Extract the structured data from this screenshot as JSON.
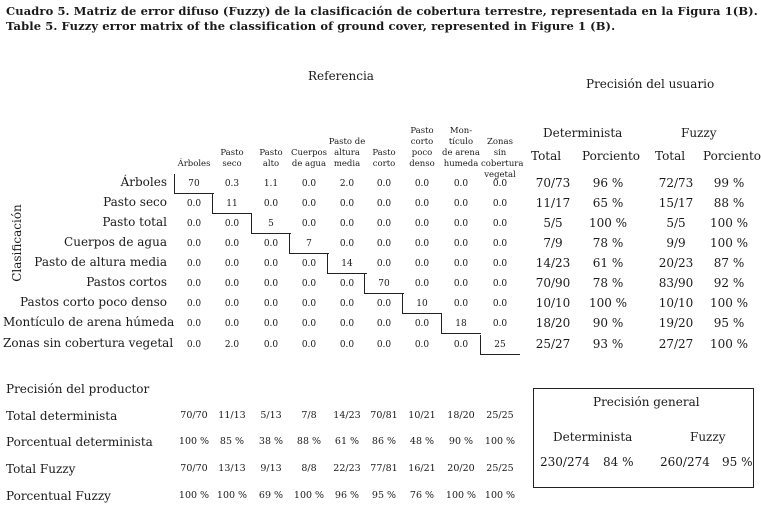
{
  "caption": {
    "line1": "Cuadro 5. Matriz de error difuso (Fuzzy) de la clasificación de cobertura terrestre, representada en la Figura 1(B).",
    "line2": "Table 5. Fuzzy error matrix of the classification of ground cover, represented in Figure 1 (B)."
  },
  "headers": {
    "referencia": "Referencia",
    "clasificacion": "Clasificación",
    "precision_usuario": "Precisión del usuario",
    "determinista": "Determinista",
    "fuzzy": "Fuzzy",
    "total": "Total",
    "porciento": "Porciento"
  },
  "columns": [
    [
      "Árboles"
    ],
    [
      "Pasto",
      "seco"
    ],
    [
      "Pasto",
      "alto"
    ],
    [
      "Cuerpos",
      "de agua"
    ],
    [
      "Pasto de",
      "altura",
      "media"
    ],
    [
      "Pasto",
      "corto"
    ],
    [
      "Pasto",
      "corto",
      "poco",
      "denso"
    ],
    [
      "Mon-",
      "tículo",
      "de arena",
      "humeda"
    ],
    [
      "Zonas sin",
      "cobertura",
      "vegetal"
    ]
  ],
  "rows": [
    {
      "label": "Árboles",
      "values": [
        "70",
        "0.3",
        "1.1",
        "0.0",
        "2.0",
        "0.0",
        "0.0",
        "0.0",
        "0.0"
      ],
      "det_total": "70/73",
      "det_pct": "96 %",
      "fz_total": "72/73",
      "fz_pct": "99 %"
    },
    {
      "label": "Pasto seco",
      "values": [
        "0.0",
        "11",
        "0.0",
        "0.0",
        "0.0",
        "0.0",
        "0.0",
        "0.0",
        "0.0"
      ],
      "det_total": "11/17",
      "det_pct": "65 %",
      "fz_total": "15/17",
      "fz_pct": "88 %"
    },
    {
      "label": "Pasto total",
      "values": [
        "0.0",
        "0.0",
        "5",
        "0.0",
        "0.0",
        "0.0",
        "0.0",
        "0.0",
        "0.0"
      ],
      "det_total": "5/5",
      "det_pct": "100 %",
      "fz_total": "5/5",
      "fz_pct": "100 %"
    },
    {
      "label": "Cuerpos de agua",
      "values": [
        "0.0",
        "0.0",
        "0.0",
        "7",
        "0.0",
        "0.0",
        "0.0",
        "0.0",
        "0.0"
      ],
      "det_total": "7/9",
      "det_pct": "78 %",
      "fz_total": "9/9",
      "fz_pct": "100 %"
    },
    {
      "label": "Pasto de altura media",
      "values": [
        "0.0",
        "0.0",
        "0.0",
        "0.0",
        "14",
        "0.0",
        "0.0",
        "0.0",
        "0.0"
      ],
      "det_total": "14/23",
      "det_pct": "61 %",
      "fz_total": "20/23",
      "fz_pct": "87 %"
    },
    {
      "label": "Pastos cortos",
      "values": [
        "0.0",
        "0.0",
        "0.0",
        "0.0",
        "0.0",
        "70",
        "0.0",
        "0.0",
        "0.0"
      ],
      "det_total": "70/90",
      "det_pct": "78 %",
      "fz_total": "83/90",
      "fz_pct": "92 %"
    },
    {
      "label": "Pastos corto poco denso",
      "values": [
        "0.0",
        "0.0",
        "0.0",
        "0.0",
        "0.0",
        "0.0",
        "10",
        "0.0",
        "0.0"
      ],
      "det_total": "10/10",
      "det_pct": "100 %",
      "fz_total": "10/10",
      "fz_pct": "100 %"
    },
    {
      "label": "Montículo de arena húmeda",
      "values": [
        "0.0",
        "0.0",
        "0.0",
        "0.0",
        "0.0",
        "0.0",
        "0.0",
        "18",
        "0.0"
      ],
      "det_total": "18/20",
      "det_pct": "90 %",
      "fz_total": "19/20",
      "fz_pct": "95 %"
    },
    {
      "label": "Zonas sin cobertura vegetal",
      "values": [
        "0.0",
        "2.0",
        "0.0",
        "0.0",
        "0.0",
        "0.0",
        "0.0",
        "0.0",
        "25"
      ],
      "det_total": "25/27",
      "det_pct": "93 %",
      "fz_total": "27/27",
      "fz_pct": "100 %"
    }
  ],
  "producer": {
    "title": "Precisión del productor",
    "rows": [
      {
        "label": "Total determinista",
        "values": [
          "70/70",
          "11/13",
          "5/13",
          "7/8",
          "14/23",
          "70/81",
          "10/21",
          "18/20",
          "25/25"
        ]
      },
      {
        "label": "Porcentual determinista",
        "values": [
          "100 %",
          "85 %",
          "38 %",
          "88 %",
          "61 %",
          "86 %",
          "48 %",
          "90 %",
          "100 %"
        ]
      },
      {
        "label": "Total Fuzzy",
        "values": [
          "70/70",
          "13/13",
          "9/13",
          "8/8",
          "22/23",
          "77/81",
          "16/21",
          "20/20",
          "25/25"
        ]
      },
      {
        "label": "Porcentual Fuzzy",
        "values": [
          "100 %",
          "100 %",
          "69 %",
          "100 %",
          "96 %",
          "95 %",
          "76 %",
          "100 %",
          "100 %"
        ]
      }
    ]
  },
  "overall": {
    "title": "Precisión general",
    "det_label": "Determinista",
    "fz_label": "Fuzzy",
    "det_total": "230/274",
    "det_pct": "84 %",
    "fz_total": "260/274",
    "fz_pct": "95 %"
  }
}
